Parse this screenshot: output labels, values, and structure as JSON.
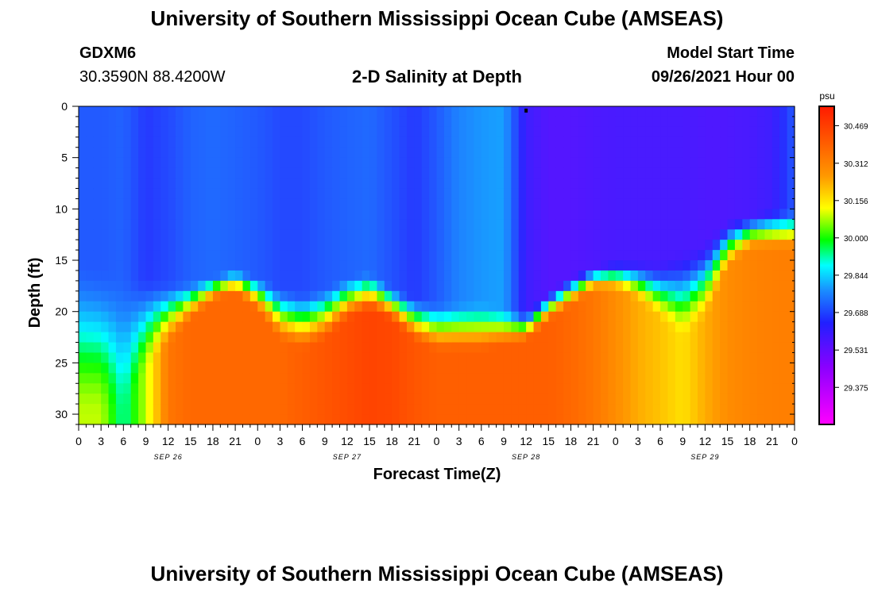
{
  "header": {
    "title": "University of Southern Mississippi Ocean Cube (AMSEAS)",
    "station": "GDXM6",
    "coords": "30.3590N  88.4200W",
    "product": "2-D Salinity at Depth",
    "start_label": "Model Start Time",
    "start_date": "09/26/2021 Hour 00"
  },
  "footer": {
    "title": "University of Southern Mississippi Ocean Cube (AMSEAS)"
  },
  "chart_data": {
    "type": "heatmap",
    "title": "2-D Salinity at Depth",
    "xlabel": "Forecast Time(Z)",
    "ylabel": "Depth (ft)",
    "x_hours": [
      0,
      96
    ],
    "x_tick_labels": [
      "0",
      "3",
      "6",
      "9",
      "12",
      "15",
      "18",
      "21",
      "0",
      "3",
      "6",
      "9",
      "12",
      "15",
      "18",
      "21",
      "0",
      "3",
      "6",
      "9",
      "12",
      "15",
      "18",
      "21",
      "0",
      "3",
      "6",
      "9",
      "12",
      "15",
      "18",
      "21",
      "0"
    ],
    "day_labels": [
      {
        "text": "SEP 26",
        "hour": 12
      },
      {
        "text": "SEP 27",
        "hour": 36
      },
      {
        "text": "SEP 28",
        "hour": 60
      },
      {
        "text": "SEP 29",
        "hour": 84
      }
    ],
    "ylim": [
      0,
      31
    ],
    "y_ticks": [
      0,
      5,
      10,
      15,
      20,
      25,
      30
    ],
    "colorbar": {
      "unit": "psu",
      "min": 29.22,
      "max": 30.55,
      "tick_values": [
        30.469,
        30.312,
        30.156,
        30.0,
        29.844,
        29.688,
        29.531,
        29.375
      ],
      "tick_labels": [
        "30.469",
        "30.312",
        "30.156",
        "30.000",
        "29.844",
        "29.688",
        "29.531",
        "29.375"
      ]
    },
    "marker": {
      "hour": 60,
      "depth": 0.3
    },
    "time_keys": [
      {
        "h": 0,
        "top": 29.7,
        "d1": 15.0,
        "d2": 30.5,
        "bot": 30.1
      },
      {
        "h": 3,
        "top": 29.7,
        "d1": 15.5,
        "d2": 30.5,
        "bot": 30.1
      },
      {
        "h": 6,
        "top": 29.71,
        "d1": 16.0,
        "d2": 30.5,
        "bot": 29.9
      },
      {
        "h": 9,
        "top": 29.66,
        "d1": 16.5,
        "d2": 26.0,
        "bot": 30.1
      },
      {
        "h": 12,
        "top": 29.68,
        "d1": 17.0,
        "d2": 23.5,
        "bot": 30.35
      },
      {
        "h": 15,
        "top": 29.71,
        "d1": 17.0,
        "d2": 21.0,
        "bot": 30.38
      },
      {
        "h": 18,
        "top": 29.72,
        "d1": 16.5,
        "d2": 19.0,
        "bot": 30.38
      },
      {
        "h": 21,
        "top": 29.71,
        "d1": 15.8,
        "d2": 18.3,
        "bot": 30.38
      },
      {
        "h": 24,
        "top": 29.7,
        "d1": 16.5,
        "d2": 20.0,
        "bot": 30.38
      },
      {
        "h": 27,
        "top": 29.68,
        "d1": 17.5,
        "d2": 23.0,
        "bot": 30.38
      },
      {
        "h": 30,
        "top": 29.68,
        "d1": 18.0,
        "d2": 24.0,
        "bot": 30.4
      },
      {
        "h": 33,
        "top": 29.7,
        "d1": 17.5,
        "d2": 23.0,
        "bot": 30.42
      },
      {
        "h": 36,
        "top": 29.71,
        "d1": 16.5,
        "d2": 21.0,
        "bot": 30.44
      },
      {
        "h": 39,
        "top": 29.72,
        "d1": 16.0,
        "d2": 20.0,
        "bot": 30.46
      },
      {
        "h": 42,
        "top": 29.69,
        "d1": 17.5,
        "d2": 21.0,
        "bot": 30.45
      },
      {
        "h": 45,
        "top": 29.66,
        "d1": 18.5,
        "d2": 23.0,
        "bot": 30.42
      },
      {
        "h": 48,
        "top": 29.7,
        "d1": 19.0,
        "d2": 24.0,
        "bot": 30.4
      },
      {
        "h": 51,
        "top": 29.75,
        "d1": 19.0,
        "d2": 24.0,
        "bot": 30.4
      },
      {
        "h": 54,
        "top": 29.77,
        "d1": 19.0,
        "d2": 24.0,
        "bot": 30.4
      },
      {
        "h": 57,
        "top": 29.78,
        "d1": 19.5,
        "d2": 23.5,
        "bot": 30.4
      },
      {
        "h": 60,
        "top": 29.6,
        "d1": 20.0,
        "d2": 23.0,
        "bot": 30.4
      },
      {
        "h": 63,
        "top": 29.56,
        "d1": 18.0,
        "d2": 21.0,
        "bot": 30.4
      },
      {
        "h": 66,
        "top": 29.56,
        "d1": 16.5,
        "d2": 19.5,
        "bot": 30.38
      },
      {
        "h": 69,
        "top": 29.57,
        "d1": 15.5,
        "d2": 18.0,
        "bot": 30.35
      },
      {
        "h": 72,
        "top": 29.58,
        "d1": 15.0,
        "d2": 18.0,
        "bot": 30.3
      },
      {
        "h": 75,
        "top": 29.58,
        "d1": 15.0,
        "d2": 19.0,
        "bot": 30.25
      },
      {
        "h": 78,
        "top": 29.58,
        "d1": 15.0,
        "d2": 21.0,
        "bot": 30.22
      },
      {
        "h": 81,
        "top": 29.58,
        "d1": 14.0,
        "d2": 23.0,
        "bot": 30.18
      },
      {
        "h": 84,
        "top": 29.57,
        "d1": 13.0,
        "d2": 21.0,
        "bot": 30.25
      },
      {
        "h": 87,
        "top": 29.57,
        "d1": 11.0,
        "d2": 16.0,
        "bot": 30.3
      },
      {
        "h": 90,
        "top": 29.58,
        "d1": 10.5,
        "d2": 14.0,
        "bot": 30.32
      },
      {
        "h": 93,
        "top": 29.6,
        "d1": 10.0,
        "d2": 14.0,
        "bot": 30.33
      },
      {
        "h": 96,
        "top": 29.7,
        "d1": 10.0,
        "d2": 14.0,
        "bot": 30.33
      }
    ]
  }
}
